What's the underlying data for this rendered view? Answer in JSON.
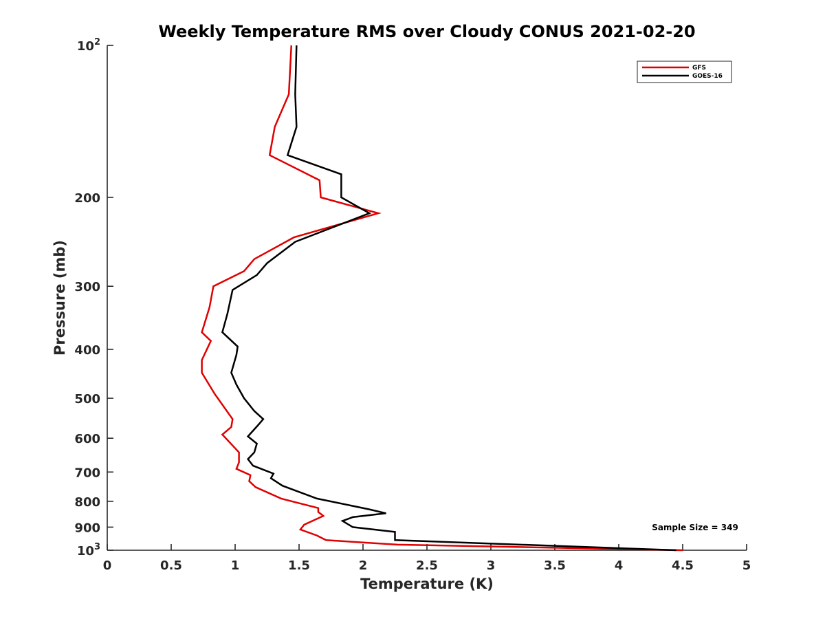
{
  "chart_data": {
    "type": "line",
    "title": "Weekly Temperature RMS over Cloudy CONUS 2021-02-20",
    "xlabel": "Temperature (K)",
    "ylabel": "Pressure (mb)",
    "xlim": [
      0,
      5
    ],
    "ylim": [
      100,
      1000
    ],
    "y_scale": "log",
    "y_reversed": true,
    "grid": false,
    "legend_position": "top-right",
    "x_ticks": [
      0,
      0.5,
      1,
      1.5,
      2,
      2.5,
      3,
      3.5,
      4,
      4.5,
      5
    ],
    "x_tick_labels": [
      "0",
      "0.5",
      "1",
      "1.5",
      "2",
      "2.5",
      "3",
      "3.5",
      "4",
      "4.5",
      "5"
    ],
    "y_ticks": [
      {
        "value": 100,
        "base": "10",
        "exp": "2"
      },
      {
        "value": 200,
        "label": "200"
      },
      {
        "value": 300,
        "label": "300"
      },
      {
        "value": 400,
        "label": "400"
      },
      {
        "value": 500,
        "label": "500"
      },
      {
        "value": 600,
        "label": "600"
      },
      {
        "value": 700,
        "label": "700"
      },
      {
        "value": 800,
        "label": "800"
      },
      {
        "value": 900,
        "label": "900"
      },
      {
        "value": 1000,
        "base": "10",
        "exp": "3"
      }
    ],
    "annotation": "Sample Size = 349",
    "series": [
      {
        "name": "GFS",
        "color": "#e00000",
        "points": [
          {
            "x": 1.44,
            "p": 100
          },
          {
            "x": 1.42,
            "p": 125
          },
          {
            "x": 1.31,
            "p": 145
          },
          {
            "x": 1.27,
            "p": 165
          },
          {
            "x": 1.66,
            "p": 185
          },
          {
            "x": 1.67,
            "p": 200
          },
          {
            "x": 2.12,
            "p": 215
          },
          {
            "x": 1.46,
            "p": 240
          },
          {
            "x": 1.15,
            "p": 265
          },
          {
            "x": 1.07,
            "p": 280
          },
          {
            "x": 0.83,
            "p": 300
          },
          {
            "x": 0.8,
            "p": 330
          },
          {
            "x": 0.74,
            "p": 370
          },
          {
            "x": 0.81,
            "p": 385
          },
          {
            "x": 0.74,
            "p": 420
          },
          {
            "x": 0.74,
            "p": 445
          },
          {
            "x": 0.84,
            "p": 490
          },
          {
            "x": 0.98,
            "p": 550
          },
          {
            "x": 0.97,
            "p": 570
          },
          {
            "x": 0.9,
            "p": 590
          },
          {
            "x": 1.03,
            "p": 640
          },
          {
            "x": 1.03,
            "p": 670
          },
          {
            "x": 1.01,
            "p": 690
          },
          {
            "x": 1.12,
            "p": 710
          },
          {
            "x": 1.11,
            "p": 730
          },
          {
            "x": 1.16,
            "p": 750
          },
          {
            "x": 1.36,
            "p": 790
          },
          {
            "x": 1.65,
            "p": 825
          },
          {
            "x": 1.65,
            "p": 840
          },
          {
            "x": 1.69,
            "p": 855
          },
          {
            "x": 1.54,
            "p": 890
          },
          {
            "x": 1.51,
            "p": 910
          },
          {
            "x": 1.64,
            "p": 935
          },
          {
            "x": 1.71,
            "p": 955
          },
          {
            "x": 2.27,
            "p": 975
          },
          {
            "x": 4.5,
            "p": 1000
          }
        ]
      },
      {
        "name": "GOES-16",
        "color": "#000000",
        "points": [
          {
            "x": 1.48,
            "p": 100
          },
          {
            "x": 1.47,
            "p": 125
          },
          {
            "x": 1.48,
            "p": 145
          },
          {
            "x": 1.41,
            "p": 165
          },
          {
            "x": 1.83,
            "p": 180
          },
          {
            "x": 1.83,
            "p": 200
          },
          {
            "x": 2.05,
            "p": 215
          },
          {
            "x": 1.47,
            "p": 245
          },
          {
            "x": 1.25,
            "p": 270
          },
          {
            "x": 1.17,
            "p": 285
          },
          {
            "x": 0.98,
            "p": 305
          },
          {
            "x": 0.94,
            "p": 340
          },
          {
            "x": 0.9,
            "p": 370
          },
          {
            "x": 1.02,
            "p": 395
          },
          {
            "x": 1.01,
            "p": 410
          },
          {
            "x": 0.97,
            "p": 445
          },
          {
            "x": 1.01,
            "p": 470
          },
          {
            "x": 1.07,
            "p": 500
          },
          {
            "x": 1.15,
            "p": 530
          },
          {
            "x": 1.22,
            "p": 550
          },
          {
            "x": 1.18,
            "p": 565
          },
          {
            "x": 1.1,
            "p": 595
          },
          {
            "x": 1.17,
            "p": 615
          },
          {
            "x": 1.15,
            "p": 640
          },
          {
            "x": 1.1,
            "p": 660
          },
          {
            "x": 1.14,
            "p": 680
          },
          {
            "x": 1.3,
            "p": 705
          },
          {
            "x": 1.28,
            "p": 720
          },
          {
            "x": 1.37,
            "p": 745
          },
          {
            "x": 1.64,
            "p": 790
          },
          {
            "x": 2.05,
            "p": 830
          },
          {
            "x": 2.18,
            "p": 845
          },
          {
            "x": 1.92,
            "p": 860
          },
          {
            "x": 1.84,
            "p": 875
          },
          {
            "x": 1.92,
            "p": 900
          },
          {
            "x": 2.25,
            "p": 920
          },
          {
            "x": 2.25,
            "p": 955
          },
          {
            "x": 4.45,
            "p": 1000
          }
        ]
      }
    ]
  }
}
